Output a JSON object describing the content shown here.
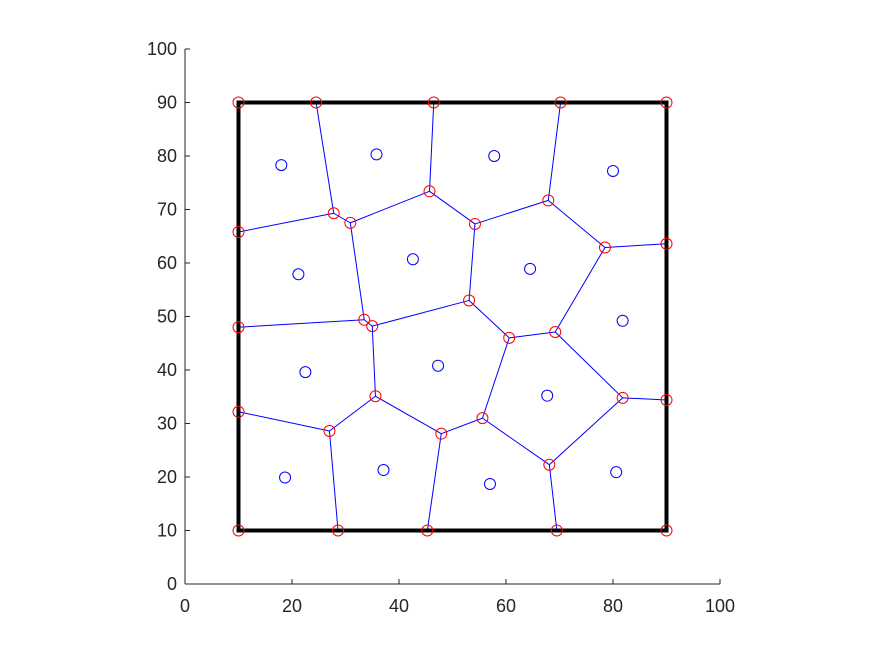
{
  "chart_data": {
    "type": "scatter",
    "title": "",
    "xlabel": "",
    "ylabel": "",
    "xlim": [
      0,
      100
    ],
    "ylim": [
      0,
      100
    ],
    "grid": false,
    "x_ticks": [
      0,
      20,
      40,
      60,
      80,
      100
    ],
    "y_ticks": [
      0,
      10,
      20,
      30,
      40,
      50,
      60,
      70,
      80,
      90,
      100
    ],
    "colors": {
      "edges": "#0000ff",
      "seeds": "#0000ff",
      "vertices": "#ff0000",
      "border": "#000000",
      "axes": "#262626"
    },
    "border_square": [
      [
        10,
        10
      ],
      [
        90,
        10
      ],
      [
        90,
        90
      ],
      [
        10,
        90
      ]
    ],
    "seeds": [
      [
        18,
        78.3
      ],
      [
        35.8,
        80.3
      ],
      [
        57.8,
        80
      ],
      [
        80,
        77.2
      ],
      [
        21.2,
        57.9
      ],
      [
        42.6,
        60.7
      ],
      [
        64.5,
        58.9
      ],
      [
        81.8,
        49.2
      ],
      [
        22.5,
        39.6
      ],
      [
        47.3,
        40.8
      ],
      [
        67.7,
        35.2
      ],
      [
        18.7,
        19.9
      ],
      [
        37.1,
        21.3
      ],
      [
        57,
        18.7
      ],
      [
        80.6,
        20.9
      ]
    ],
    "vertices": [
      [
        10,
        90
      ],
      [
        24.5,
        90
      ],
      [
        46.5,
        90
      ],
      [
        70.2,
        90
      ],
      [
        90,
        90
      ],
      [
        10,
        65.8
      ],
      [
        27.8,
        69.3
      ],
      [
        30.9,
        67.5
      ],
      [
        45.7,
        73.4
      ],
      [
        54.2,
        67.3
      ],
      [
        67.9,
        71.7
      ],
      [
        78.5,
        62.9
      ],
      [
        90,
        63.6
      ],
      [
        10,
        48
      ],
      [
        33.5,
        49.4
      ],
      [
        35,
        48.2
      ],
      [
        53.1,
        53
      ],
      [
        60.6,
        46
      ],
      [
        69.2,
        47.1
      ],
      [
        10,
        32.2
      ],
      [
        27,
        28.6
      ],
      [
        35.6,
        35.1
      ],
      [
        47.9,
        28.1
      ],
      [
        55.6,
        31
      ],
      [
        81.8,
        34.8
      ],
      [
        90,
        34.4
      ],
      [
        68.1,
        22.3
      ],
      [
        10,
        10
      ],
      [
        28.6,
        10
      ],
      [
        45.3,
        10
      ],
      [
        69.5,
        10
      ],
      [
        90,
        10
      ]
    ],
    "edges": [
      [
        [
          24.5,
          90
        ],
        [
          27.8,
          69.3
        ]
      ],
      [
        [
          46.5,
          90
        ],
        [
          45.7,
          73.4
        ]
      ],
      [
        [
          70.2,
          90
        ],
        [
          67.9,
          71.7
        ]
      ],
      [
        [
          10,
          65.8
        ],
        [
          27.8,
          69.3
        ]
      ],
      [
        [
          27.8,
          69.3
        ],
        [
          30.9,
          67.5
        ]
      ],
      [
        [
          30.9,
          67.5
        ],
        [
          45.7,
          73.4
        ]
      ],
      [
        [
          45.7,
          73.4
        ],
        [
          54.2,
          67.3
        ]
      ],
      [
        [
          54.2,
          67.3
        ],
        [
          67.9,
          71.7
        ]
      ],
      [
        [
          67.9,
          71.7
        ],
        [
          78.5,
          62.9
        ]
      ],
      [
        [
          78.5,
          62.9
        ],
        [
          90,
          63.6
        ]
      ],
      [
        [
          30.9,
          67.5
        ],
        [
          33.5,
          49.4
        ]
      ],
      [
        [
          54.2,
          67.3
        ],
        [
          53.1,
          53
        ]
      ],
      [
        [
          78.5,
          62.9
        ],
        [
          69.2,
          47.1
        ]
      ],
      [
        [
          10,
          48
        ],
        [
          33.5,
          49.4
        ]
      ],
      [
        [
          33.5,
          49.4
        ],
        [
          35,
          48.2
        ]
      ],
      [
        [
          35,
          48.2
        ],
        [
          53.1,
          53
        ]
      ],
      [
        [
          53.1,
          53
        ],
        [
          60.6,
          46
        ]
      ],
      [
        [
          60.6,
          46
        ],
        [
          69.2,
          47.1
        ]
      ],
      [
        [
          35,
          48.2
        ],
        [
          35.6,
          35.1
        ]
      ],
      [
        [
          60.6,
          46
        ],
        [
          55.6,
          31
        ]
      ],
      [
        [
          69.2,
          47.1
        ],
        [
          81.8,
          34.8
        ]
      ],
      [
        [
          81.8,
          34.8
        ],
        [
          90,
          34.4
        ]
      ],
      [
        [
          10,
          32.2
        ],
        [
          27,
          28.6
        ]
      ],
      [
        [
          27,
          28.6
        ],
        [
          35.6,
          35.1
        ]
      ],
      [
        [
          35.6,
          35.1
        ],
        [
          47.9,
          28.1
        ]
      ],
      [
        [
          47.9,
          28.1
        ],
        [
          55.6,
          31
        ]
      ],
      [
        [
          55.6,
          31
        ],
        [
          68.1,
          22.3
        ]
      ],
      [
        [
          68.1,
          22.3
        ],
        [
          81.8,
          34.8
        ]
      ],
      [
        [
          27,
          28.6
        ],
        [
          28.6,
          10
        ]
      ],
      [
        [
          47.9,
          28.1
        ],
        [
          45.3,
          10
        ]
      ],
      [
        [
          68.1,
          22.3
        ],
        [
          69.5,
          10
        ]
      ]
    ]
  }
}
